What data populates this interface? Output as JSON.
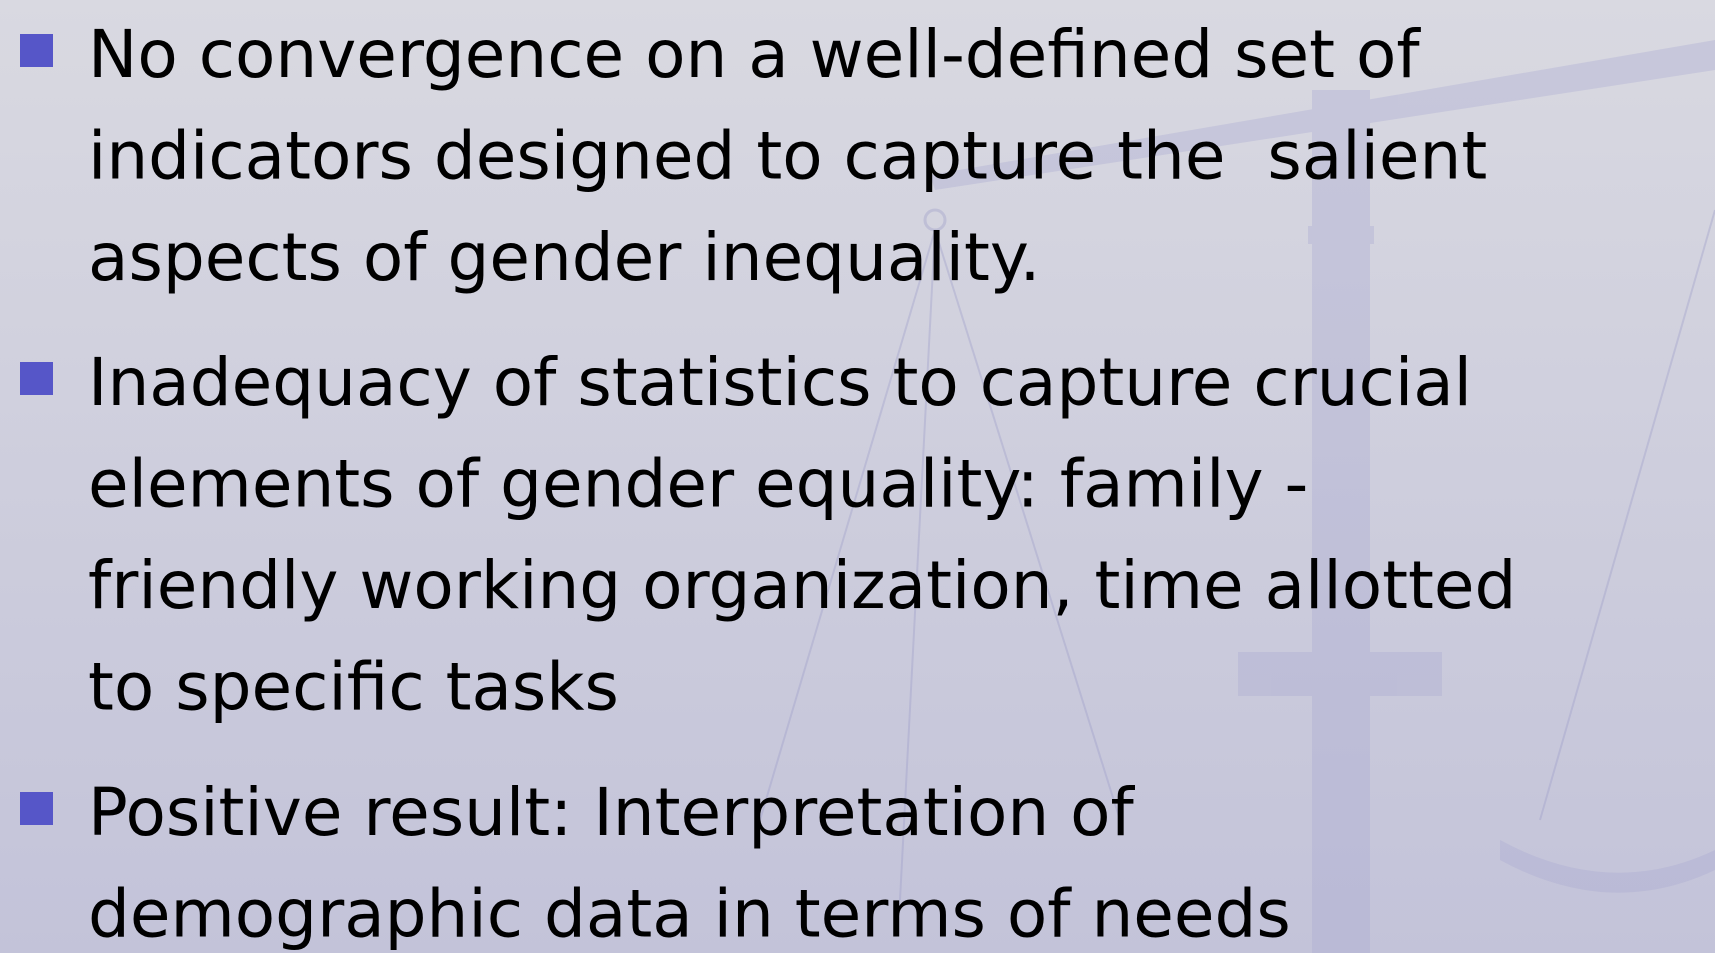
{
  "bullets": [
    {
      "lines": [
        "No convergence on a well-defined set of",
        "indicators designed to capture the  salient",
        "aspects of gender inequality."
      ]
    },
    {
      "lines": [
        "Inadequacy of statistics to capture crucial",
        "elements of gender equality: family -",
        "friendly working organization, time allotted",
        "to specific tasks"
      ]
    },
    {
      "lines": [
        "Positive result: Interpretation of",
        "demographic data in terms of needs"
      ]
    }
  ]
}
